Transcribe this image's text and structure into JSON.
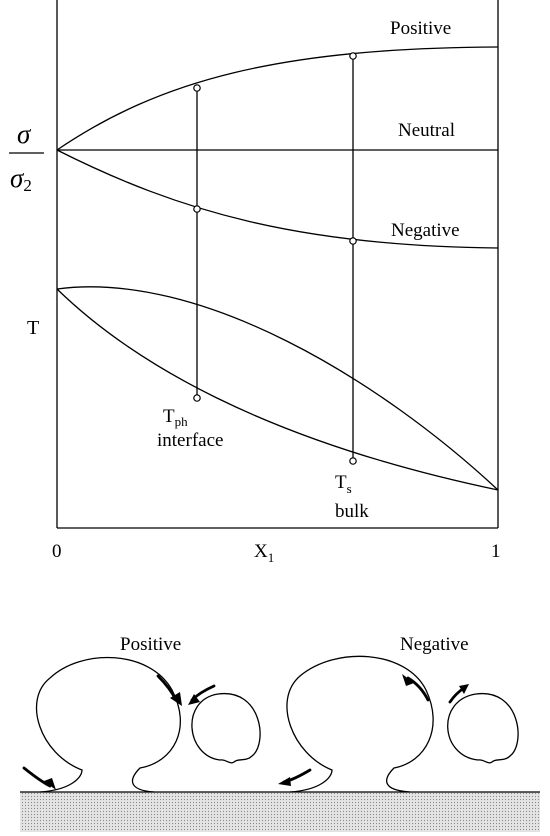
{
  "plot": {
    "curve_labels": {
      "positive": "Positive",
      "neutral": "Neutral",
      "negative": "Negative"
    },
    "y_axis": {
      "sigma_top": "σ",
      "sigma_bottom": "σ",
      "sigma_bottom_sub": "2",
      "temperature": "T"
    },
    "x_axis": {
      "label": "X",
      "label_sub": "1",
      "tick_min": "0",
      "tick_max": "1"
    },
    "annotations": {
      "t_ph": "T",
      "t_ph_sub": "ph",
      "interface": "interface",
      "t_s": "T",
      "t_s_sub": "s",
      "bulk": "bulk"
    }
  },
  "illustration": {
    "left_title": "Positive",
    "right_title": "Negative"
  }
}
